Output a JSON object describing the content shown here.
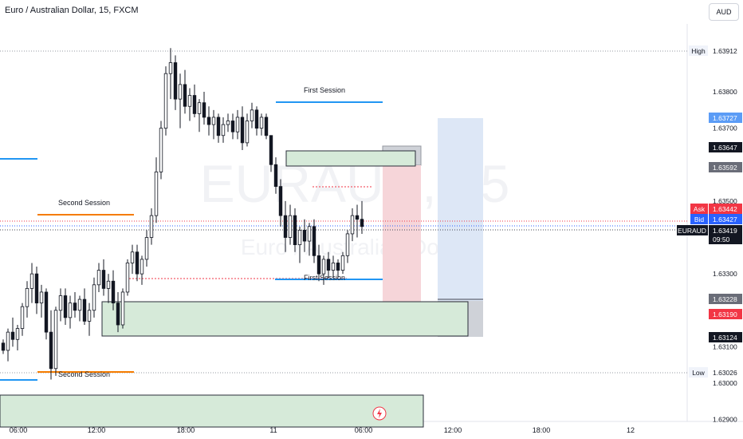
{
  "header": {
    "title": "Euro / Australian Dollar, 15, FXCM",
    "currency_button": "AUD"
  },
  "watermark": {
    "symbol": "EURAUD, 15",
    "name": "Euro / Australian Dollar"
  },
  "colors": {
    "up": "#ffffff",
    "down": "#131722",
    "wick": "#131722",
    "zone_fill": "#d6ead9",
    "zone_border": "#2a2e39",
    "session_blue": "#2196f3",
    "session_orange": "#f57c00",
    "level_red": "#f23645",
    "ask_bg": "#f23645",
    "bid_bg": "#2962ff",
    "dark_label": "#131722",
    "grey_label": "#6a6d78",
    "blue_label": "#5b9cf6",
    "short_red": "#f6d5d9",
    "short_blue": "#dde7f6"
  },
  "annotations": {
    "first_session_top": "First Session",
    "first_session_bottom": "First Session",
    "second_session_top": "Second Session",
    "second_session_bottom": "Second Session"
  },
  "price_axis": {
    "high_label": "High",
    "high_value": "1.63912",
    "low_label": "Low",
    "low_value": "1.63026",
    "ask_label": "Ask",
    "ask_value": "1.63442",
    "bid_label": "Bid",
    "bid_value": "1.63427",
    "symbol_label": "EURAUD",
    "last_value": "1.63419",
    "countdown": "09:50",
    "level_1": "1.63727",
    "level_2": "1.63647",
    "level_3": "1.63592",
    "level_4": "1.63228",
    "level_5": "1.63190",
    "level_6": "1.63124"
  },
  "chart_data": {
    "type": "candlestick",
    "title": "Euro / Australian Dollar, 15, FXCM",
    "ylim": [
      1.6288,
      1.6395
    ],
    "y_ticks": [
      "1.63800",
      "1.63700",
      "1.63500",
      "1.63300",
      "1.63100",
      "1.63000",
      "1.62900"
    ],
    "x_ticks": [
      "06:00",
      "12:00",
      "18:00",
      "11",
      "06:00",
      "12:00",
      "18:00",
      "12"
    ],
    "series": [
      {
        "values": [
          [
            1.6311,
            1.6312,
            1.6308,
            1.6309
          ],
          [
            1.6309,
            1.6315,
            1.6306,
            1.6314
          ],
          [
            1.6314,
            1.6318,
            1.631,
            1.6312
          ],
          [
            1.6312,
            1.6316,
            1.6309,
            1.6315
          ],
          [
            1.6315,
            1.6322,
            1.6313,
            1.6321
          ],
          [
            1.6321,
            1.6328,
            1.6318,
            1.6326
          ],
          [
            1.6326,
            1.6333,
            1.6322,
            1.633
          ],
          [
            1.633,
            1.6332,
            1.6319,
            1.6322
          ],
          [
            1.6322,
            1.6327,
            1.6318,
            1.6325
          ],
          [
            1.6325,
            1.6326,
            1.6312,
            1.6314
          ],
          [
            1.6314,
            1.632,
            1.6301,
            1.6304
          ],
          [
            1.6304,
            1.6321,
            1.6302,
            1.632
          ],
          [
            1.632,
            1.6326,
            1.6317,
            1.6324
          ],
          [
            1.6324,
            1.6326,
            1.6316,
            1.6318
          ],
          [
            1.6318,
            1.6324,
            1.6315,
            1.6322
          ],
          [
            1.6322,
            1.6325,
            1.6318,
            1.632
          ],
          [
            1.632,
            1.6324,
            1.6317,
            1.6323
          ],
          [
            1.6323,
            1.6326,
            1.6316,
            1.6317
          ],
          [
            1.6317,
            1.6322,
            1.6313,
            1.632
          ],
          [
            1.632,
            1.6329,
            1.6318,
            1.6327
          ],
          [
            1.6327,
            1.6333,
            1.6325,
            1.6331
          ],
          [
            1.6331,
            1.6334,
            1.6324,
            1.6326
          ],
          [
            1.6326,
            1.633,
            1.6322,
            1.6328
          ],
          [
            1.6328,
            1.6331,
            1.632,
            1.6322
          ],
          [
            1.6322,
            1.6325,
            1.6314,
            1.6316
          ],
          [
            1.6316,
            1.6326,
            1.6315,
            1.6325
          ],
          [
            1.6325,
            1.6334,
            1.6324,
            1.6333
          ],
          [
            1.6333,
            1.6338,
            1.633,
            1.6336
          ],
          [
            1.6336,
            1.6338,
            1.6328,
            1.633
          ],
          [
            1.633,
            1.6335,
            1.6327,
            1.6334
          ],
          [
            1.6334,
            1.6342,
            1.6332,
            1.634
          ],
          [
            1.634,
            1.6348,
            1.6338,
            1.6346
          ],
          [
            1.6346,
            1.6362,
            1.6344,
            1.6358
          ],
          [
            1.6358,
            1.6372,
            1.6356,
            1.637
          ],
          [
            1.637,
            1.6387,
            1.6368,
            1.6385
          ],
          [
            1.6385,
            1.6392,
            1.6378,
            1.6388
          ],
          [
            1.6388,
            1.639,
            1.6375,
            1.6378
          ],
          [
            1.6378,
            1.6385,
            1.637,
            1.6382
          ],
          [
            1.6382,
            1.6386,
            1.6374,
            1.6376
          ],
          [
            1.6376,
            1.6381,
            1.6372,
            1.6379
          ],
          [
            1.6379,
            1.6382,
            1.6373,
            1.6374
          ],
          [
            1.6374,
            1.6378,
            1.6369,
            1.6377
          ],
          [
            1.6377,
            1.638,
            1.6371,
            1.6373
          ],
          [
            1.6373,
            1.6376,
            1.6368,
            1.6371
          ],
          [
            1.6371,
            1.6375,
            1.6367,
            1.6373
          ],
          [
            1.6373,
            1.6374,
            1.6366,
            1.6368
          ],
          [
            1.6368,
            1.6373,
            1.6366,
            1.6371
          ],
          [
            1.6371,
            1.6374,
            1.6369,
            1.6372
          ],
          [
            1.6372,
            1.6374,
            1.6367,
            1.6369
          ],
          [
            1.6369,
            1.6375,
            1.6367,
            1.6373
          ],
          [
            1.6373,
            1.6376,
            1.6364,
            1.6366
          ],
          [
            1.6366,
            1.6374,
            1.6365,
            1.6372
          ],
          [
            1.6372,
            1.6377,
            1.637,
            1.6375
          ],
          [
            1.6375,
            1.6376,
            1.6368,
            1.637
          ],
          [
            1.637,
            1.6374,
            1.6368,
            1.6373
          ],
          [
            1.6373,
            1.6374,
            1.6367,
            1.6368
          ],
          [
            1.6368,
            1.6365,
            1.6358,
            1.636
          ],
          [
            1.636,
            1.6362,
            1.6352,
            1.6354
          ],
          [
            1.6354,
            1.6356,
            1.6343,
            1.6346
          ],
          [
            1.6346,
            1.635,
            1.6336,
            1.634
          ],
          [
            1.634,
            1.6349,
            1.6338,
            1.6346
          ],
          [
            1.6346,
            1.6348,
            1.6336,
            1.6338
          ],
          [
            1.6338,
            1.6343,
            1.6333,
            1.6342
          ],
          [
            1.6342,
            1.6345,
            1.6336,
            1.6339
          ],
          [
            1.6339,
            1.6344,
            1.6335,
            1.6343
          ],
          [
            1.6343,
            1.6345,
            1.6333,
            1.6335
          ],
          [
            1.6335,
            1.6338,
            1.6328,
            1.633
          ],
          [
            1.633,
            1.6335,
            1.6327,
            1.6334
          ],
          [
            1.6334,
            1.6336,
            1.6329,
            1.6331
          ],
          [
            1.6331,
            1.6335,
            1.6329,
            1.6333
          ],
          [
            1.6333,
            1.6334,
            1.6329,
            1.6331
          ],
          [
            1.6331,
            1.6336,
            1.633,
            1.6335
          ],
          [
            1.6335,
            1.6342,
            1.6333,
            1.6341
          ],
          [
            1.6341,
            1.6348,
            1.6339,
            1.6346
          ],
          [
            1.6346,
            1.6349,
            1.634,
            1.6345
          ],
          [
            1.6345,
            1.635,
            1.6341,
            1.6343
          ]
        ]
      }
    ]
  }
}
